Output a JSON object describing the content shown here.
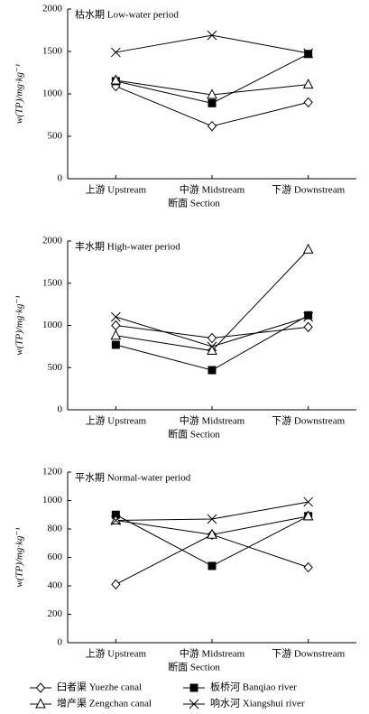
{
  "chart_data": [
    {
      "type": "line",
      "title": "枯水期 Low-water period",
      "ylabel": "w(TP)/mg·kg⁻¹",
      "xlabel": "断面 Section",
      "categories": [
        "上游 Upstream",
        "中游 Midstream",
        "下游 Downstream"
      ],
      "ylim": [
        0,
        2000
      ],
      "yticks": [
        0,
        500,
        1000,
        1500,
        2000
      ],
      "series": [
        {
          "name": "臼者渠 Yuezhe canal",
          "marker": "diamond",
          "color": "#000000",
          "values": [
            1090,
            620,
            900
          ]
        },
        {
          "name": "板桥河 Banqiao river",
          "marker": "square",
          "color": "#000000",
          "values": [
            1150,
            890,
            1470
          ]
        },
        {
          "name": "增产渠 Zengchan canal",
          "marker": "triangle",
          "color": "#000000",
          "values": [
            1160,
            990,
            1110
          ]
        },
        {
          "name": "响水河 Xiangshui river",
          "marker": "x",
          "color": "#000000",
          "values": [
            1490,
            1690,
            1480
          ]
        }
      ]
    },
    {
      "type": "line",
      "title": "丰水期 High-water period",
      "ylabel": "w(TP)/mg·kg⁻¹",
      "xlabel": "断面 Section",
      "categories": [
        "上游 Upstream",
        "中游 Midstream",
        "下游 Downstream"
      ],
      "ylim": [
        0,
        2000
      ],
      "yticks": [
        0,
        500,
        1000,
        1500,
        2000
      ],
      "series": [
        {
          "marker": "diamond",
          "color": "#000000",
          "values": [
            1000,
            850,
            980
          ]
        },
        {
          "marker": "square",
          "color": "#000000",
          "values": [
            770,
            470,
            1120
          ]
        },
        {
          "marker": "triangle",
          "color": "#000000",
          "values": [
            880,
            700,
            1900
          ]
        },
        {
          "marker": "x",
          "color": "#000000",
          "values": [
            1100,
            750,
            1100
          ]
        }
      ]
    },
    {
      "type": "line",
      "title": "平水期 Normal-water period",
      "ylabel": "w(TP)/mg·kg⁻¹",
      "xlabel": "断面 Section",
      "categories": [
        "上游 Upstream",
        "中游 Midstream",
        "下游 Downstream"
      ],
      "ylim": [
        0,
        1200
      ],
      "yticks": [
        0,
        200,
        400,
        600,
        800,
        1000,
        1200
      ],
      "series": [
        {
          "marker": "diamond",
          "color": "#000000",
          "values": [
            410,
            760,
            530
          ]
        },
        {
          "marker": "square",
          "color": "#000000",
          "values": [
            900,
            540,
            890
          ]
        },
        {
          "marker": "triangle",
          "color": "#000000",
          "values": [
            860,
            760,
            890
          ]
        },
        {
          "marker": "x",
          "color": "#000000",
          "values": [
            860,
            870,
            990
          ]
        }
      ]
    }
  ]
}
